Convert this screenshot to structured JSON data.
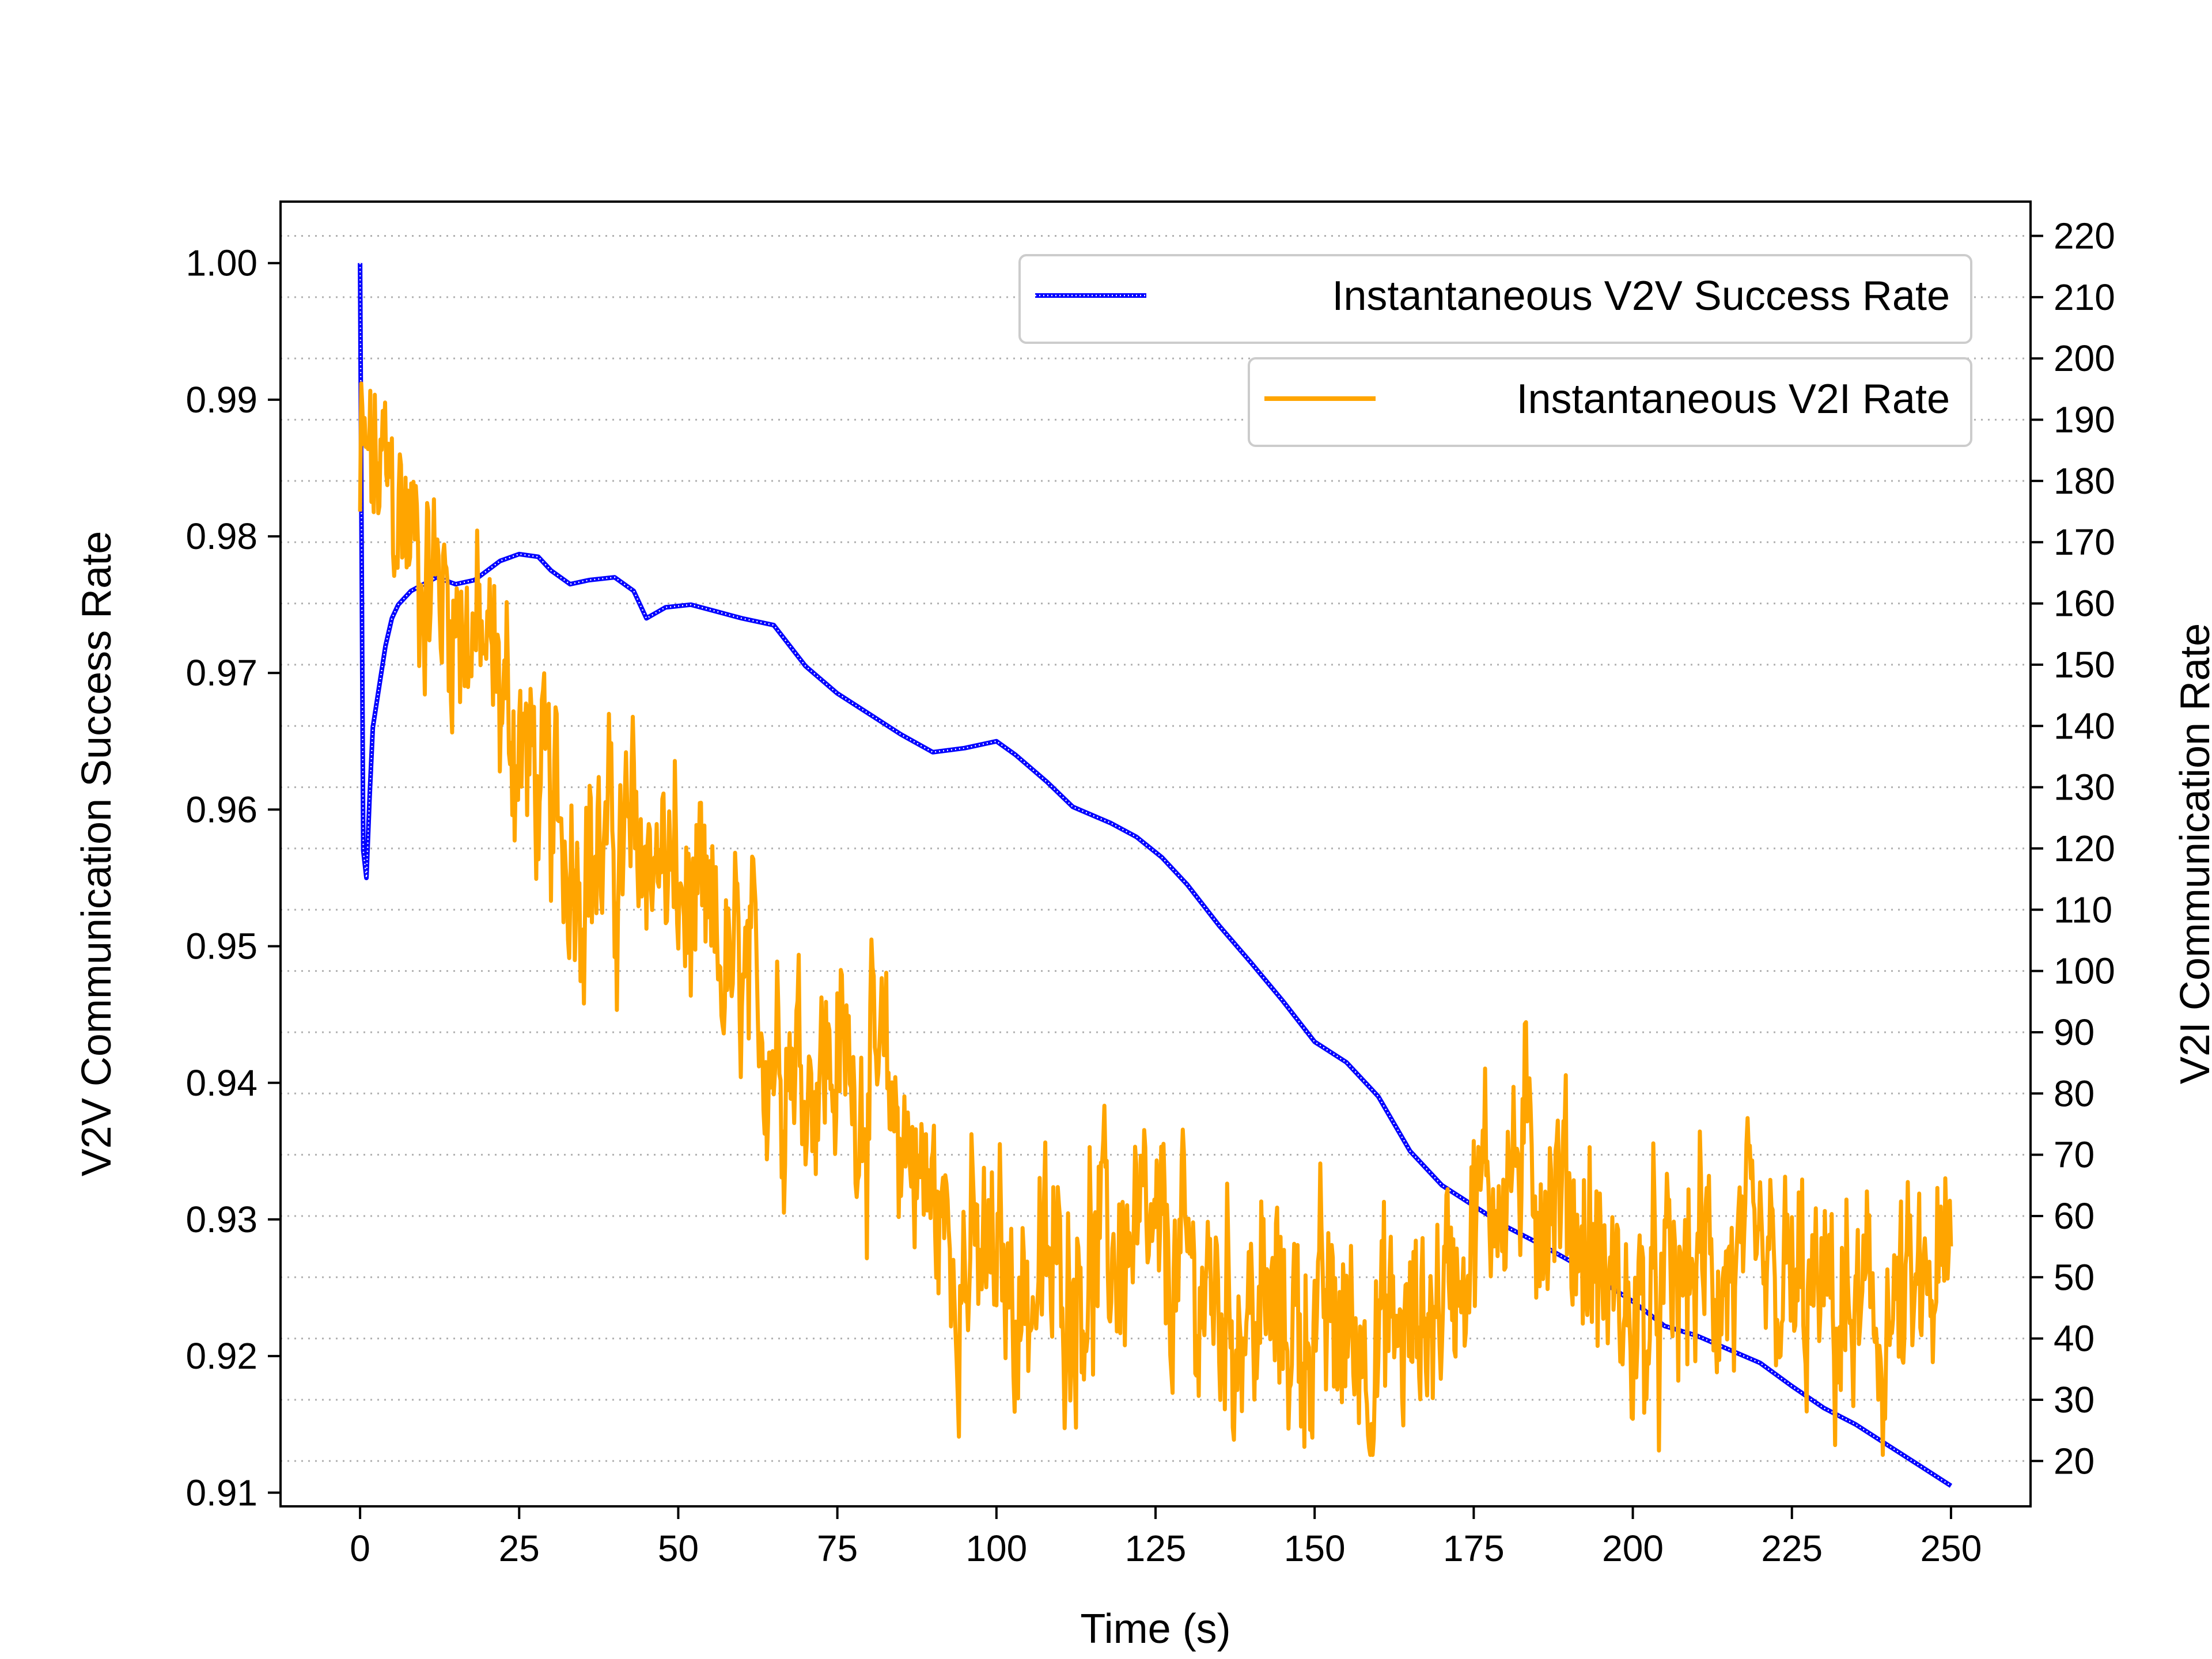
{
  "chart_data": {
    "type": "line",
    "title": "",
    "xlabel": "Time (s)",
    "ylabel": "V2V Communication Success Rate",
    "ylabel_right": "V2I Communication Rate",
    "xlim": [
      -12.5,
      262.5
    ],
    "ylim": [
      0.909,
      1.0045
    ],
    "ylim_right": [
      12.6,
      225.6
    ],
    "x_ticks": [
      0,
      25,
      50,
      75,
      100,
      125,
      150,
      175,
      200,
      225,
      250
    ],
    "y_ticks": [
      0.91,
      0.92,
      0.93,
      0.94,
      0.95,
      0.96,
      0.97,
      0.98,
      0.99,
      1.0
    ],
    "y_tick_labels": [
      "0.91",
      "0.92",
      "0.93",
      "0.94",
      "0.95",
      "0.96",
      "0.97",
      "0.98",
      "0.99",
      "1.00"
    ],
    "y_ticks_right": [
      20,
      30,
      40,
      50,
      60,
      70,
      80,
      90,
      100,
      110,
      120,
      130,
      140,
      150,
      160,
      170,
      180,
      190,
      200,
      210,
      220
    ],
    "grid": "horizontal dotted on right axis ticks",
    "legend_placement": "top-right",
    "series": [
      {
        "name": "Instantaneous V2V Success Rate",
        "axis": "left",
        "color": "#0000ff",
        "x": [
          0,
          0.5,
          1,
          1.5,
          2,
          3,
          4,
          5,
          6,
          8,
          10,
          12,
          15,
          18,
          20,
          22,
          25,
          28,
          30,
          33,
          36,
          40,
          43,
          45,
          48,
          52,
          56,
          60,
          65,
          70,
          75,
          80,
          85,
          90,
          95,
          100,
          103,
          108,
          112,
          118,
          122,
          126,
          130,
          135,
          140,
          145,
          150,
          155,
          160,
          165,
          170,
          175,
          180,
          185,
          190,
          195,
          200,
          205,
          210,
          215,
          220,
          225,
          230,
          235,
          240,
          245,
          250
        ],
        "y": [
          1.0,
          0.957,
          0.955,
          0.961,
          0.966,
          0.969,
          0.972,
          0.974,
          0.975,
          0.976,
          0.9765,
          0.977,
          0.9765,
          0.9768,
          0.9775,
          0.9782,
          0.9787,
          0.9785,
          0.9775,
          0.9765,
          0.9768,
          0.977,
          0.976,
          0.974,
          0.9748,
          0.975,
          0.9745,
          0.974,
          0.9735,
          0.9705,
          0.9685,
          0.967,
          0.9655,
          0.9642,
          0.9645,
          0.965,
          0.964,
          0.962,
          0.9602,
          0.959,
          0.958,
          0.9565,
          0.9545,
          0.9515,
          0.9488,
          0.946,
          0.943,
          0.9415,
          0.939,
          0.935,
          0.9325,
          0.931,
          0.9295,
          0.9283,
          0.927,
          0.9255,
          0.924,
          0.9222,
          0.9215,
          0.9205,
          0.9195,
          0.9178,
          0.9162,
          0.915,
          0.9135,
          0.912,
          0.9105
        ]
      },
      {
        "name": "Instantaneous V2I Rate",
        "axis": "right",
        "color": "#ffa500",
        "x": [
          0,
          5,
          10,
          15,
          20,
          25,
          30,
          35,
          40,
          45,
          50,
          55,
          60,
          65,
          70,
          75,
          80,
          85,
          90,
          95,
          100,
          105,
          110,
          115,
          120,
          125,
          130,
          135,
          140,
          145,
          150,
          155,
          160,
          165,
          170,
          175,
          180,
          185,
          190,
          195,
          200,
          205,
          210,
          215,
          220,
          225,
          230,
          235,
          240,
          245,
          250
        ],
        "y": [
          182,
          178,
          166,
          160,
          150,
          138,
          125,
          120,
          118,
          122,
          112,
          103,
          96,
          90,
          86,
          85,
          82,
          75,
          62,
          52,
          50,
          48,
          50,
          53,
          55,
          52,
          50,
          46,
          44,
          43,
          42,
          41,
          40,
          40,
          48,
          60,
          68,
          67,
          62,
          50,
          42,
          45,
          52,
          50,
          48,
          46,
          44,
          42,
          42,
          44,
          50
        ]
      }
    ]
  }
}
